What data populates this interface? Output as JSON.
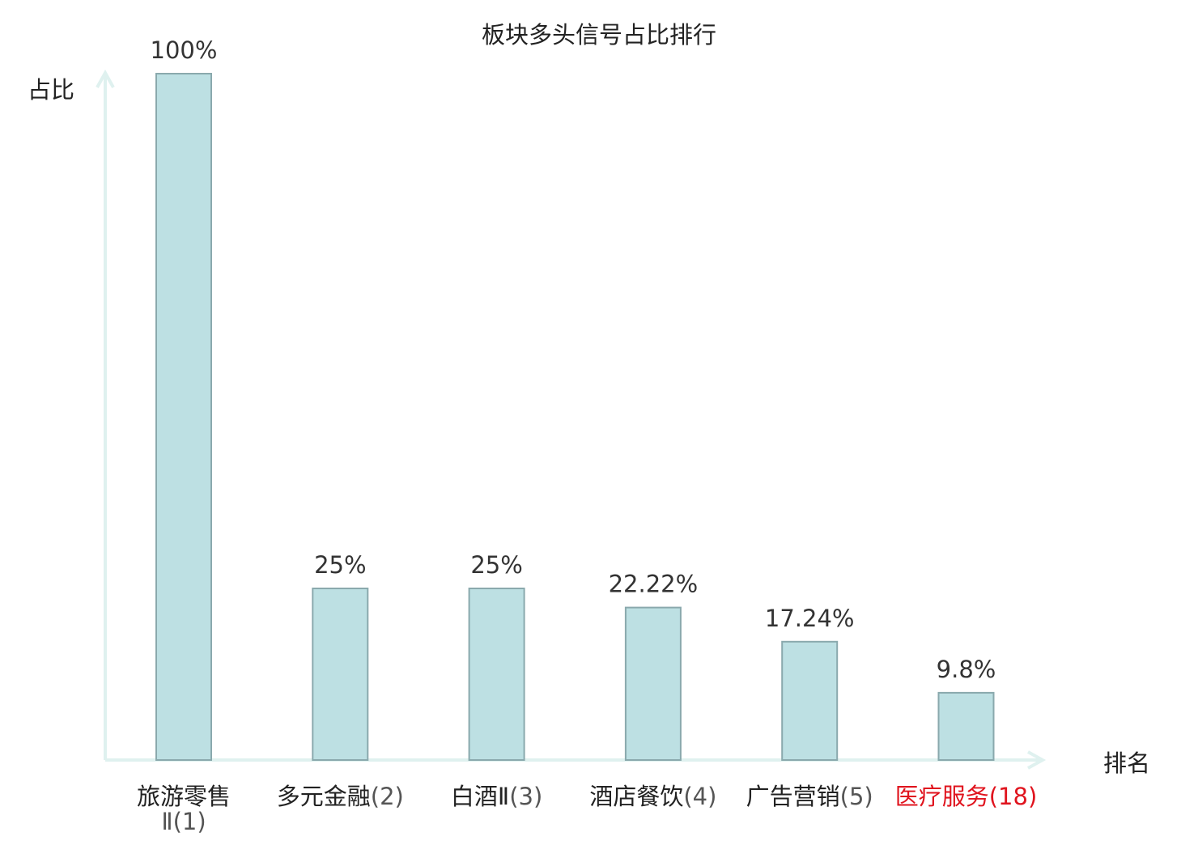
{
  "chart_data": {
    "type": "bar",
    "title": "板块多头信号占比排行",
    "ylabel": "占比",
    "xlabel": "排名",
    "ylim": [
      0,
      100
    ],
    "categories": [
      "旅游零售Ⅱ(1)",
      "多元金融(2)",
      "白酒Ⅱ(3)",
      "酒店餐饮(4)",
      "广告营销(5)",
      "医疗服务(18)"
    ],
    "category_names": [
      "旅游零售",
      "多元金融",
      "白酒Ⅱ",
      "酒店餐饮",
      "广告营销",
      "医疗服务"
    ],
    "category_ranks": [
      "Ⅱ(1)",
      "(2)",
      "(3)",
      "(4)",
      "(5)",
      "(18)"
    ],
    "values": [
      100,
      25,
      25,
      22.22,
      17.24,
      9.8
    ],
    "value_labels": [
      "100%",
      "25%",
      "25%",
      "22.22%",
      "17.24%",
      "9.8%"
    ],
    "highlight_index": 5,
    "colors": {
      "bar_fill": "#bde0e3",
      "bar_stroke": "#8aa9ad",
      "axis": "#dff1ef",
      "text": "#222222",
      "rank_text": "#555555",
      "highlight": "#e0141e"
    }
  }
}
